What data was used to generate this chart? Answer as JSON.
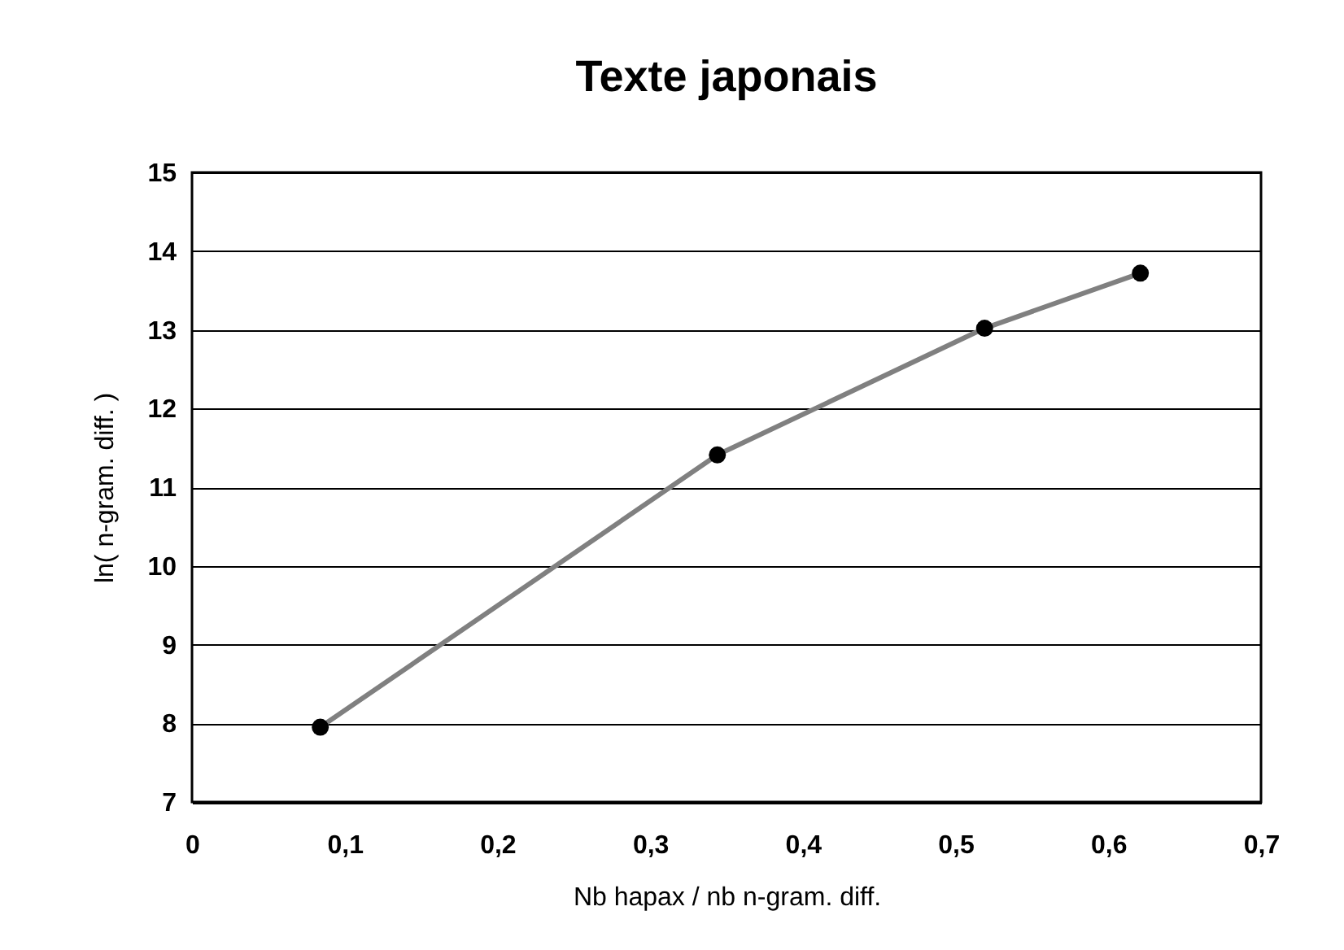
{
  "chart_data": {
    "type": "line",
    "title": "Texte japonais",
    "xlabel": "Nb hapax / nb n-gram. diff.",
    "ylabel": "ln( n-gram. diff. )",
    "x": [
      0.084,
      0.344,
      0.519,
      0.621
    ],
    "series": [
      {
        "color": "#808080",
        "values": [
          7.95,
          11.41,
          13.02,
          13.72
        ]
      }
    ],
    "xlim": [
      0,
      0.7
    ],
    "xticks": [
      {
        "value": 0,
        "label": "0"
      },
      {
        "value": 0.1,
        "label": "0,1"
      },
      {
        "value": 0.2,
        "label": "0,2"
      },
      {
        "value": 0.3,
        "label": "0,3"
      },
      {
        "value": 0.4,
        "label": "0,4"
      },
      {
        "value": 0.5,
        "label": "0,5"
      },
      {
        "value": 0.6,
        "label": "0,6"
      },
      {
        "value": 0.7,
        "label": "0,7"
      }
    ],
    "ylim": [
      7,
      15
    ],
    "yticks": [
      7,
      8,
      9,
      10,
      11,
      12,
      13,
      14,
      15
    ],
    "grid": "y",
    "marker": "circle"
  }
}
